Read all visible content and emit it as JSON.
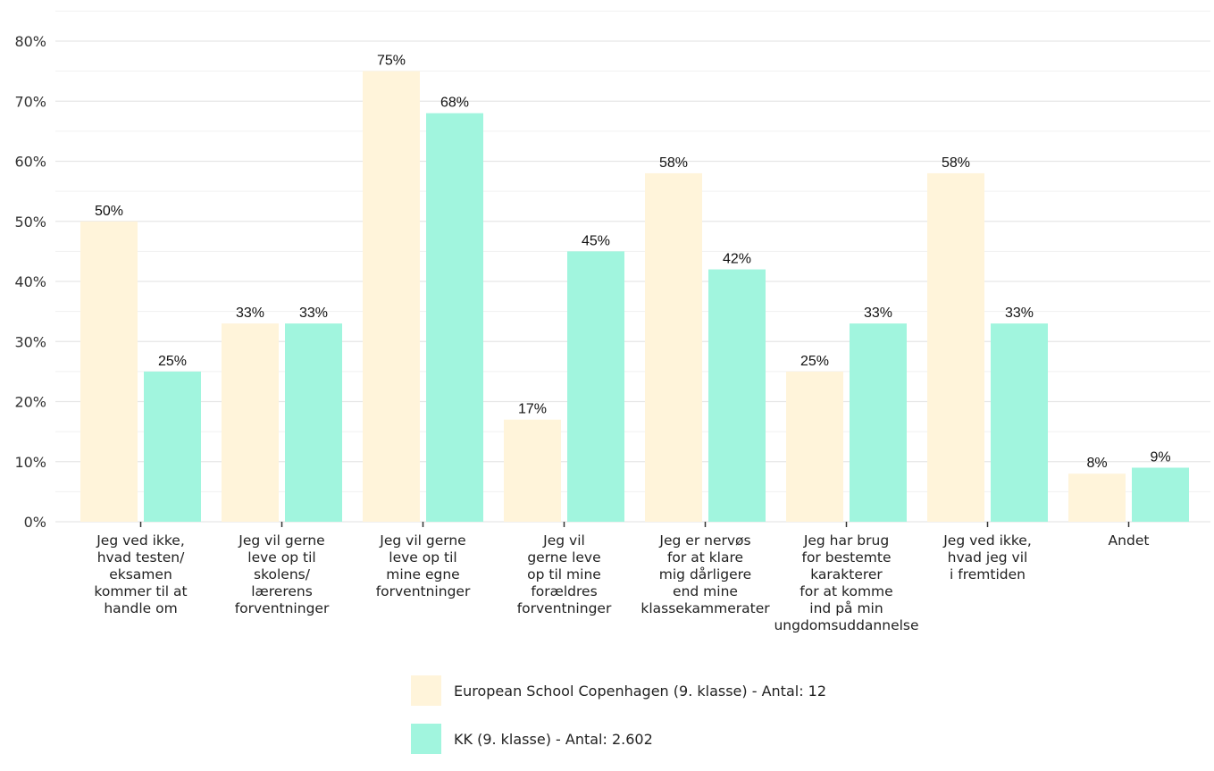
{
  "chart_data": {
    "type": "bar",
    "ylim": [
      0,
      80
    ],
    "yticks": [
      "0%",
      "10%",
      "20%",
      "30%",
      "40%",
      "50%",
      "60%",
      "70%",
      "80%"
    ],
    "categories": [
      [
        "Jeg ved ikke,",
        "hvad testen/",
        "eksamen",
        "kommer til at",
        "handle om"
      ],
      [
        "Jeg vil gerne",
        "leve op til",
        "skolens/",
        "lærerens",
        "forventninger"
      ],
      [
        "Jeg vil gerne",
        "leve op til",
        "mine egne",
        "forventninger"
      ],
      [
        "Jeg vil",
        "gerne leve",
        "op til mine",
        "forældres",
        "forventninger"
      ],
      [
        "Jeg er nervøs",
        "for at klare",
        "mig dårligere",
        "end mine",
        "klassekammerater"
      ],
      [
        "Jeg har brug",
        "for bestemte",
        "karakterer",
        "for at komme",
        "ind på min",
        "ungdomsuddannelse"
      ],
      [
        "Jeg ved ikke,",
        "hvad jeg vil",
        "i fremtiden"
      ],
      [
        "Andet"
      ]
    ],
    "series": [
      {
        "name": "European School Copenhagen (9. klasse) - Antal: 12",
        "color": "#FFF4DA",
        "values": [
          50,
          33,
          75,
          17,
          58,
          25,
          58,
          8
        ],
        "labels": [
          "50%",
          "33%",
          "75%",
          "17%",
          "58%",
          "25%",
          "58%",
          "8%"
        ]
      },
      {
        "name": "KK (9. klasse) - Antal: 2.602",
        "color": "#A1F5DE",
        "values": [
          25,
          33,
          68,
          45,
          42,
          33,
          33,
          9
        ],
        "labels": [
          "25%",
          "33%",
          "68%",
          "45%",
          "42%",
          "33%",
          "33%",
          "9%"
        ]
      }
    ]
  }
}
